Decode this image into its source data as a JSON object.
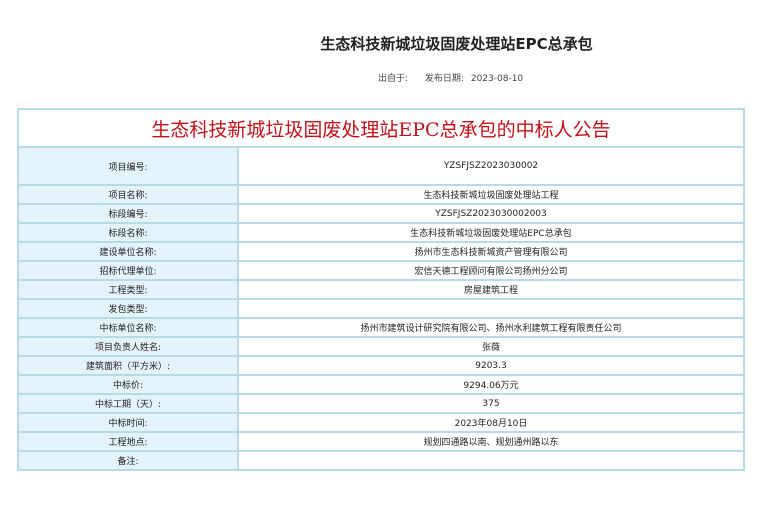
{
  "header": {
    "title": "生态科技新城垃圾固废处理站EPC总承包",
    "source_label": "出自于:",
    "date_label": "发布日期:",
    "date": "2023-08-10"
  },
  "notice": {
    "title": "生态科技新城垃圾固废处理站EPC总承包的中标人公告",
    "rows": [
      {
        "label": "项目编号:",
        "value": "YZSFJSZ2023030002"
      },
      {
        "label": "项目名称:",
        "value": "生态科技新城垃圾固废处理站工程"
      },
      {
        "label": "标段编号:",
        "value": "YZSFJSZ2023030002003"
      },
      {
        "label": "标段名称:",
        "value": "生态科技新城垃圾固废处理站EPC总承包"
      },
      {
        "label": "建设单位名称:",
        "value": "扬州市生态科技新城资产管理有限公司"
      },
      {
        "label": "招标代理单位:",
        "value": "宏信天德工程顾问有限公司扬州分公司"
      },
      {
        "label": "工程类型:",
        "value": "房屋建筑工程"
      },
      {
        "label": "发包类型:",
        "value": ""
      },
      {
        "label": "中标单位名称:",
        "value": "扬州市建筑设计研究院有限公司、扬州水利建筑工程有限责任公司"
      },
      {
        "label": "项目负责人姓名:",
        "value": "张薇"
      },
      {
        "label": "建筑面积（平方米）:",
        "value": "9203.3"
      },
      {
        "label": "中标价:",
        "value": "9294.06万元"
      },
      {
        "label": "中标工期（天）:",
        "value": "375"
      },
      {
        "label": "中标时间:",
        "value": "2023年08月10日"
      },
      {
        "label": "工程地点:",
        "value": "规划四通路以南、规划通州路以东"
      },
      {
        "label": "备注:",
        "value": ""
      }
    ]
  }
}
